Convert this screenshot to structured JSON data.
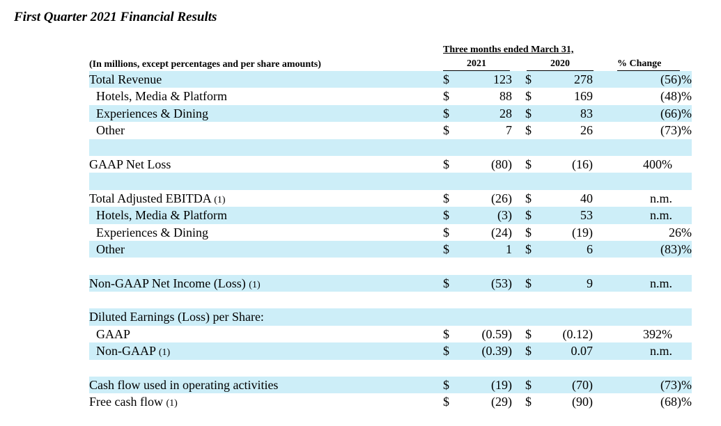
{
  "title": "First Quarter 2021 Financial Results",
  "header": {
    "period": "Three months ended March 31,",
    "year1": "2021",
    "year2": "2020",
    "pct_change": "% Change",
    "units": "(In millions, except percentages and per share amounts)"
  },
  "rows": [
    {
      "label": "Total Revenue",
      "fn": "",
      "indent": false,
      "shade": true,
      "d1": "$",
      "v1": "123",
      "d2": "$",
      "v2": "278",
      "pct": "(56)%",
      "pct_center": false
    },
    {
      "label": "Hotels, Media & Platform",
      "fn": "",
      "indent": true,
      "shade": false,
      "d1": "$",
      "v1": "88",
      "d2": "$",
      "v2": "169",
      "pct": "(48)%",
      "pct_center": false
    },
    {
      "label": "Experiences & Dining",
      "fn": "",
      "indent": true,
      "shade": true,
      "d1": "$",
      "v1": "28",
      "d2": "$",
      "v2": "83",
      "pct": "(66)%",
      "pct_center": false
    },
    {
      "label": "Other",
      "fn": "",
      "indent": true,
      "shade": false,
      "d1": "$",
      "v1": "7",
      "d2": "$",
      "v2": "26",
      "pct": "(73)%",
      "pct_center": false
    },
    {
      "label": "",
      "fn": "",
      "indent": false,
      "shade": true,
      "d1": "",
      "v1": "",
      "d2": "",
      "v2": "",
      "pct": "",
      "pct_center": false
    },
    {
      "label": "GAAP Net Loss",
      "fn": "",
      "indent": false,
      "shade": false,
      "d1": "$",
      "v1": "(80)",
      "d2": "$",
      "v2": "(16)",
      "pct": "400%",
      "pct_center": true
    },
    {
      "label": "",
      "fn": "",
      "indent": false,
      "shade": true,
      "d1": "",
      "v1": "",
      "d2": "",
      "v2": "",
      "pct": "",
      "pct_center": false
    },
    {
      "label": "Total Adjusted EBITDA",
      "fn": "(1)",
      "indent": false,
      "shade": false,
      "d1": "$",
      "v1": "(26)",
      "d2": "$",
      "v2": "40",
      "pct": "n.m.",
      "pct_center": true
    },
    {
      "label": "Hotels, Media & Platform",
      "fn": "",
      "indent": true,
      "shade": true,
      "d1": "$",
      "v1": "(3)",
      "d2": "$",
      "v2": "53",
      "pct": "n.m.",
      "pct_center": true
    },
    {
      "label": "Experiences & Dining",
      "fn": "",
      "indent": true,
      "shade": false,
      "d1": "$",
      "v1": "(24)",
      "d2": "$",
      "v2": "(19)",
      "pct": "26%",
      "pct_center": false
    },
    {
      "label": "Other",
      "fn": "",
      "indent": true,
      "shade": true,
      "d1": "$",
      "v1": "1",
      "d2": "$",
      "v2": "6",
      "pct": "(83)%",
      "pct_center": false
    },
    {
      "label": "",
      "fn": "",
      "indent": false,
      "shade": false,
      "d1": "",
      "v1": "",
      "d2": "",
      "v2": "",
      "pct": "",
      "pct_center": false
    },
    {
      "label": "Non-GAAP Net Income (Loss)",
      "fn": "(1)",
      "indent": false,
      "shade": true,
      "d1": "$",
      "v1": "(53)",
      "d2": "$",
      "v2": "9",
      "pct": "n.m.",
      "pct_center": true
    },
    {
      "label": "",
      "fn": "",
      "indent": false,
      "shade": false,
      "d1": "",
      "v1": "",
      "d2": "",
      "v2": "",
      "pct": "",
      "pct_center": false
    },
    {
      "label": "Diluted Earnings (Loss) per Share:",
      "fn": "",
      "indent": false,
      "shade": true,
      "d1": "",
      "v1": "",
      "d2": "",
      "v2": "",
      "pct": "",
      "pct_center": false
    },
    {
      "label": "GAAP",
      "fn": "",
      "indent": true,
      "shade": false,
      "d1": "$",
      "v1": "(0.59)",
      "d2": "$",
      "v2": "(0.12)",
      "pct": "392%",
      "pct_center": true
    },
    {
      "label": "Non-GAAP",
      "fn": "(1)",
      "indent": true,
      "shade": true,
      "d1": "$",
      "v1": "(0.39)",
      "d2": "$",
      "v2": "0.07",
      "pct": "n.m.",
      "pct_center": true
    },
    {
      "label": "",
      "fn": "",
      "indent": false,
      "shade": false,
      "d1": "",
      "v1": "",
      "d2": "",
      "v2": "",
      "pct": "",
      "pct_center": false
    },
    {
      "label": "Cash flow used in operating activities",
      "fn": "",
      "indent": false,
      "shade": true,
      "d1": "$",
      "v1": "(19)",
      "d2": "$",
      "v2": "(70)",
      "pct": "(73)%",
      "pct_center": false
    },
    {
      "label": "Free cash flow",
      "fn": "(1)",
      "indent": false,
      "shade": false,
      "d1": "$",
      "v1": "(29)",
      "d2": "$",
      "v2": "(90)",
      "pct": "(68)%",
      "pct_center": false
    }
  ]
}
